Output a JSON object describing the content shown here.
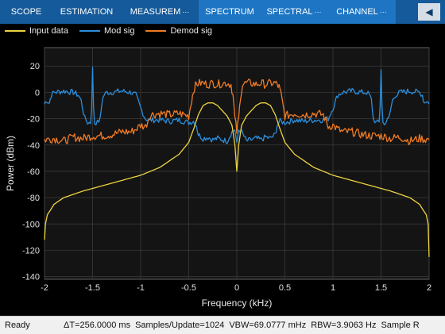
{
  "toolstrip": {
    "tabs": [
      {
        "label": "SCOPE",
        "active": false,
        "dots": ""
      },
      {
        "label": "ESTIMATION",
        "active": false,
        "dots": ""
      },
      {
        "label": "MEASUREM",
        "active": false,
        "dots": "···"
      },
      {
        "label": "SPECTRUM",
        "active": true,
        "dots": ""
      },
      {
        "label": "SPECTRAL",
        "active": true,
        "dots": "···"
      },
      {
        "label": "CHANNEL",
        "active": true,
        "dots": "···"
      }
    ],
    "more_icon": "collapse-arrow-icon"
  },
  "legend": {
    "entries": [
      {
        "name": "Input data",
        "color": "#edd340"
      },
      {
        "name": "Mod sig",
        "color": "#2b8fdd"
      },
      {
        "name": "Demod sig",
        "color": "#f07b24"
      }
    ]
  },
  "chart_data": {
    "type": "line",
    "title": "",
    "xlabel": "Frequency (kHz)",
    "ylabel": "Power (dBm)",
    "xlim": [
      -2,
      2
    ],
    "ylim": [
      -142,
      34
    ],
    "xticks": [
      -2,
      -1.5,
      -1,
      -0.5,
      0,
      0.5,
      1,
      1.5,
      2
    ],
    "xtick_labels": [
      "-2",
      "-1.5",
      "-1",
      "-0.5",
      "0",
      "0.5",
      "1",
      "1.5",
      "2"
    ],
    "yticks": [
      20,
      0,
      -20,
      -40,
      -60,
      -80,
      -100,
      -120,
      -140
    ],
    "ytick_labels": [
      "20",
      "0",
      "-20",
      "-40",
      "-60",
      "-80",
      "-100",
      "-120",
      "-140"
    ],
    "grid": true,
    "background": "#141414",
    "series": [
      {
        "name": "Input data",
        "color": "#edd340",
        "x": [
          -2,
          -1.99,
          -1.97,
          -1.9,
          -1.8,
          -1.6,
          -1.4,
          -1.2,
          -1.0,
          -0.8,
          -0.6,
          -0.5,
          -0.45,
          -0.4,
          -0.35,
          -0.3,
          -0.25,
          -0.2,
          -0.15,
          -0.1,
          -0.05,
          -0.02,
          0,
          0.02,
          0.05,
          0.1,
          0.15,
          0.2,
          0.25,
          0.3,
          0.35,
          0.4,
          0.45,
          0.5,
          0.6,
          0.8,
          1.0,
          1.2,
          1.4,
          1.6,
          1.8,
          1.9,
          1.97,
          1.99,
          2
        ],
        "y": [
          -112,
          -100,
          -93,
          -85,
          -80,
          -75,
          -71,
          -67,
          -63,
          -57,
          -47,
          -38,
          -28,
          -17,
          -10,
          -8,
          -8,
          -10,
          -14,
          -18,
          -25,
          -40,
          -60,
          -40,
          -25,
          -18,
          -14,
          -10,
          -8,
          -8,
          -10,
          -17,
          -28,
          -38,
          -47,
          -57,
          -63,
          -67,
          -71,
          -75,
          -80,
          -85,
          -93,
          -100,
          -125
        ]
      },
      {
        "name": "Mod sig",
        "color": "#2b8fdd",
        "x": [
          -2,
          -1.98,
          -1.95,
          -1.93,
          -1.9,
          -1.8,
          -1.7,
          -1.65,
          -1.62,
          -1.58,
          -1.55,
          -1.52,
          -1.51,
          -1.5,
          -1.49,
          -1.48,
          -1.45,
          -1.42,
          -1.4,
          -1.38,
          -1.35,
          -1.3,
          -1.2,
          -1.1,
          -1.05,
          -1.0,
          -0.95,
          -0.9,
          -0.8,
          -0.7,
          -0.6,
          -0.5,
          -0.45,
          -0.42,
          -0.4,
          -0.35,
          -0.3,
          -0.25,
          -0.2,
          -0.1,
          -0.05,
          -0.02,
          0,
          0.02,
          0.05,
          0.1,
          0.2,
          0.25,
          0.3,
          0.35,
          0.4,
          0.42,
          0.45,
          0.5,
          0.6,
          0.7,
          0.8,
          0.9,
          0.95,
          1.0,
          1.05,
          1.1,
          1.2,
          1.3,
          1.35,
          1.38,
          1.4,
          1.42,
          1.45,
          1.48,
          1.49,
          1.5,
          1.51,
          1.52,
          1.55,
          1.58,
          1.62,
          1.65,
          1.7,
          1.8,
          1.9,
          1.93,
          1.95,
          1.98,
          2
        ],
        "y": [
          -9,
          -6,
          -8,
          -2,
          0,
          1,
          0,
          -2,
          -6,
          -20,
          -23,
          -23,
          -10,
          18,
          -10,
          -23,
          -23,
          -20,
          -6,
          -2,
          0,
          0,
          1,
          0,
          -2,
          -12,
          -20,
          -21,
          -21,
          -22,
          -21,
          -23,
          -22,
          -25,
          -32,
          -35,
          -34,
          -36,
          -35,
          -37,
          -30,
          -28,
          -40,
          -28,
          -30,
          -37,
          -35,
          -36,
          -34,
          -35,
          -32,
          -25,
          -22,
          -23,
          -21,
          -22,
          -21,
          -21,
          -20,
          -12,
          -2,
          0,
          1,
          0,
          0,
          -2,
          -6,
          -20,
          -23,
          -23,
          -10,
          18,
          -10,
          -23,
          -23,
          -20,
          -6,
          -2,
          0,
          1,
          0,
          -2,
          -8,
          -6,
          -9
        ]
      },
      {
        "name": "Demod sig",
        "color": "#f07b24",
        "x": [
          -2,
          -1.9,
          -1.8,
          -1.7,
          -1.6,
          -1.5,
          -1.4,
          -1.3,
          -1.2,
          -1.1,
          -1.05,
          -1.0,
          -0.95,
          -0.9,
          -0.8,
          -0.7,
          -0.6,
          -0.5,
          -0.48,
          -0.46,
          -0.44,
          -0.42,
          -0.4,
          -0.35,
          -0.3,
          -0.25,
          -0.2,
          -0.15,
          -0.1,
          -0.06,
          -0.04,
          -0.02,
          0,
          0.02,
          0.04,
          0.06,
          0.1,
          0.15,
          0.2,
          0.25,
          0.3,
          0.35,
          0.4,
          0.42,
          0.44,
          0.46,
          0.48,
          0.5,
          0.6,
          0.7,
          0.8,
          0.9,
          0.95,
          1.0,
          1.05,
          1.1,
          1.2,
          1.3,
          1.4,
          1.5,
          1.6,
          1.7,
          1.8,
          1.9,
          2
        ],
        "y": [
          -36,
          -35,
          -37,
          -34,
          -35,
          -33,
          -33,
          -32,
          -30,
          -30,
          -28,
          -25,
          -26,
          -17,
          -16,
          -17,
          -16,
          -18,
          -10,
          -2,
          4,
          6,
          7,
          7,
          6,
          7,
          6,
          7,
          7,
          6,
          -2,
          -20,
          -30,
          -20,
          -2,
          6,
          7,
          7,
          6,
          7,
          6,
          7,
          7,
          6,
          4,
          -2,
          -10,
          -18,
          -16,
          -17,
          -16,
          -17,
          -26,
          -25,
          -28,
          -30,
          -30,
          -32,
          -33,
          -33,
          -35,
          -34,
          -37,
          -35,
          -36
        ]
      }
    ]
  },
  "status": {
    "state": "Ready",
    "delta_t": "ΔT=256.0000 ms",
    "samples": "Samples/Update=1024",
    "vbw": "VBW=69.0777 mHz",
    "rbw": "RBW=3.9063 Hz",
    "sample_rate": "Sample R"
  }
}
